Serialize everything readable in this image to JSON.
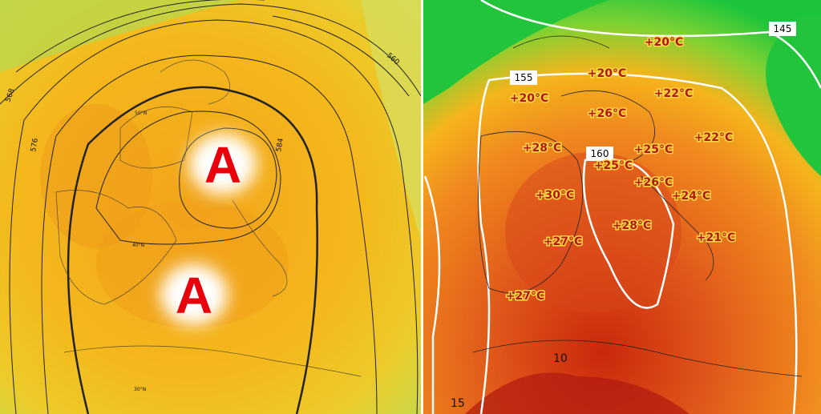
{
  "left_map": {
    "highs": [
      "A",
      "A"
    ],
    "contour_labels": [
      "576",
      "568",
      "560",
      "584"
    ],
    "lat_labels": [
      "50°N",
      "40°N",
      "30°N"
    ]
  },
  "right_map": {
    "isoline_labels": [
      "155",
      "160",
      "145"
    ],
    "isotherm_labels": [
      "10",
      "15"
    ],
    "temperatures": [
      "+20°C",
      "+20°C",
      "+20°C",
      "+22°C",
      "+26°C",
      "+22°C",
      "+28°C",
      "+25°C",
      "+25°C",
      "+26°C",
      "+30°C",
      "+24°C",
      "+28°C",
      "+27°C",
      "+21°C",
      "+27°C"
    ]
  }
}
